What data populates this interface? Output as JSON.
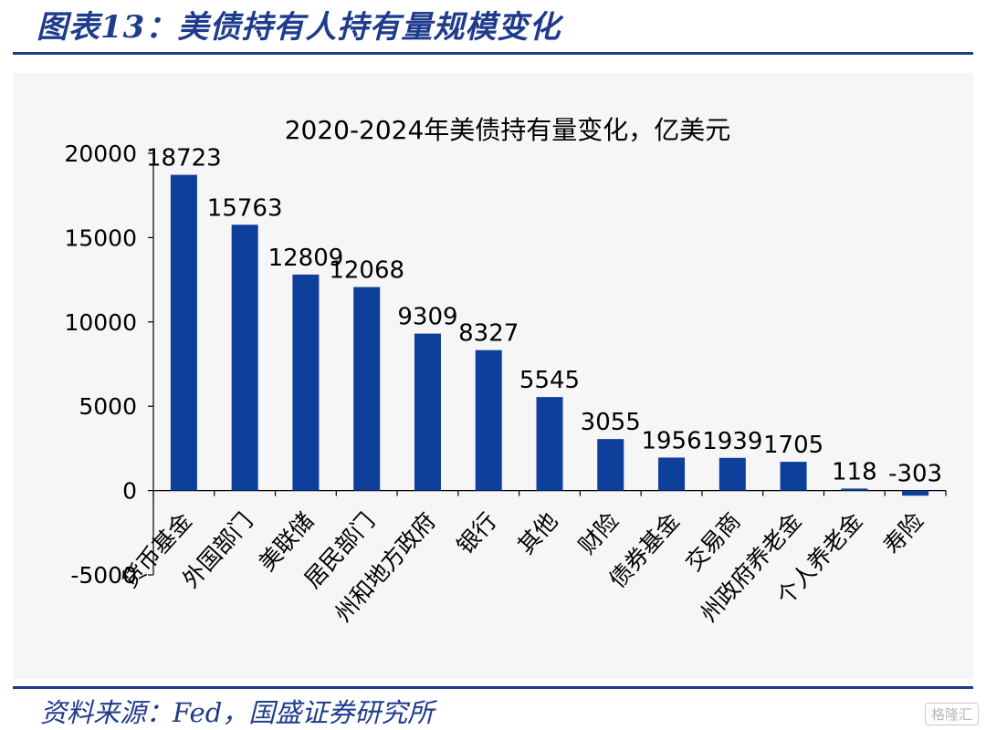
{
  "header": {
    "title": "图表13：美债持有人持有量规模变化",
    "source": "资料来源：Fed，国盛证券研究所",
    "watermark": "格隆汇"
  },
  "colors": {
    "bar": "#0e3f9a",
    "rule": "#1f3c8c",
    "panel": "#f6f6f6"
  },
  "chart_data": {
    "type": "bar",
    "title": "2020-2024年美债持有量变化，亿美元",
    "categories": [
      "货币基金",
      "外国部门",
      "美联储",
      "居民部门",
      "州和地方政府",
      "银行",
      "其他",
      "财险",
      "债券基金",
      "交易商",
      "州政府养老金",
      "个人养老金",
      "寿险"
    ],
    "values": [
      18723,
      15763,
      12809,
      12068,
      9309,
      8327,
      5545,
      3055,
      1956,
      1939,
      1705,
      118,
      -303
    ],
    "ylim": [
      -5000,
      20000
    ],
    "yticks": [
      -5000,
      0,
      5000,
      10000,
      15000,
      20000
    ],
    "xlabel": "",
    "ylabel": "",
    "grid": false,
    "legend": "none"
  }
}
